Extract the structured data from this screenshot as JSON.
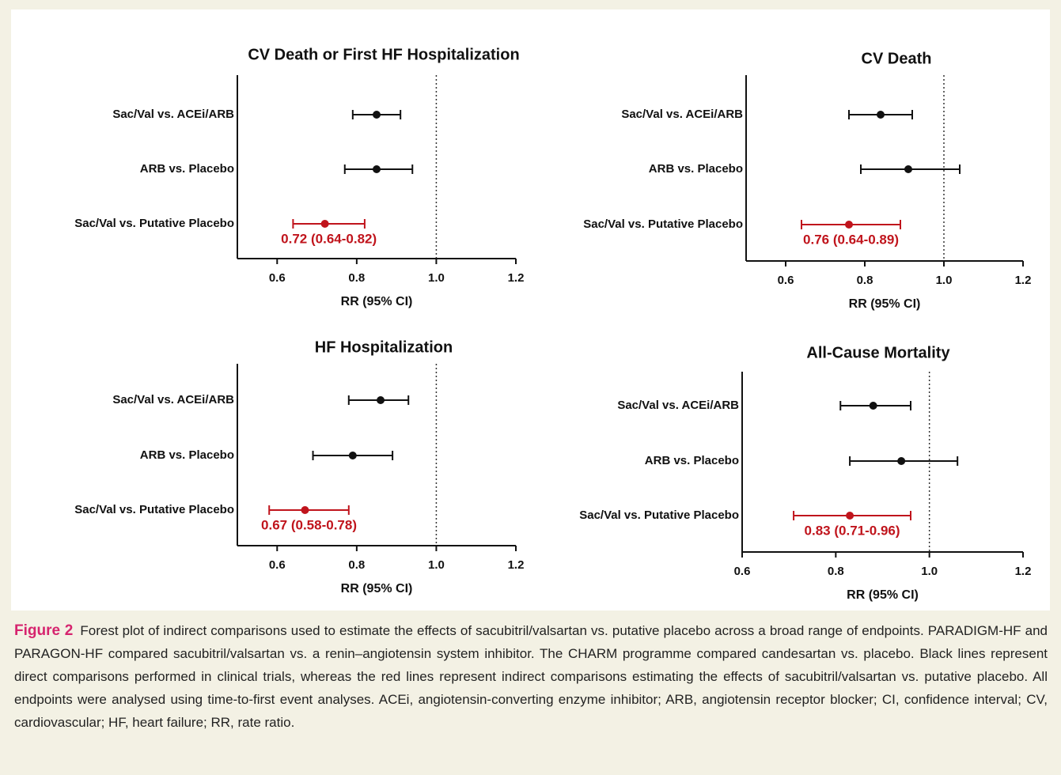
{
  "chart_data": [
    {
      "type": "forest",
      "title": "CV Death or First HF Hospitalization",
      "xlabel": "RR (95% CI)",
      "categories": [
        "Sac/Val vs. ACEi/ARB",
        "ARB vs. Placebo",
        "Sac/Val vs. Putative Placebo"
      ],
      "values": [
        0.85,
        0.85,
        0.72
      ],
      "lower": [
        0.79,
        0.77,
        0.64
      ],
      "upper": [
        0.91,
        0.94,
        0.82
      ],
      "colors": [
        "#111111",
        "#111111",
        "#c0141c"
      ],
      "value_labels": [
        null,
        null,
        "0.72 (0.64-0.82)"
      ],
      "xlim": [
        0.5,
        1.2
      ],
      "xticks": [
        0.6,
        0.8,
        {
          "value": 1,
          "label": "1.0"
        },
        1.2
      ],
      "reference_line": 1
    },
    {
      "type": "forest",
      "title": "CV Death",
      "xlabel": "RR (95% CI)",
      "categories": [
        "Sac/Val vs. ACEi/ARB",
        "ARB vs. Placebo",
        "Sac/Val vs. Putative Placebo"
      ],
      "values": [
        0.84,
        0.91,
        0.76
      ],
      "lower": [
        0.76,
        0.79,
        0.64
      ],
      "upper": [
        0.92,
        1.04,
        0.89
      ],
      "colors": [
        "#111111",
        "#111111",
        "#c0141c"
      ],
      "value_labels": [
        null,
        null,
        "0.76 (0.64-0.89)"
      ],
      "xlim": [
        0.5,
        1.2
      ],
      "xticks": [
        0.6,
        0.8,
        {
          "value": 1,
          "label": "1.0"
        },
        1.2
      ],
      "reference_line": 1
    },
    {
      "type": "forest",
      "title": "HF Hospitalization",
      "xlabel": "RR (95% CI)",
      "categories": [
        "Sac/Val vs. ACEi/ARB",
        "ARB vs. Placebo",
        "Sac/Val vs. Putative Placebo"
      ],
      "values": [
        0.86,
        0.79,
        0.67
      ],
      "lower": [
        0.78,
        0.69,
        0.58
      ],
      "upper": [
        0.93,
        0.89,
        0.78
      ],
      "colors": [
        "#111111",
        "#111111",
        "#c0141c"
      ],
      "value_labels": [
        null,
        null,
        "0.67 (0.58-0.78)"
      ],
      "xlim": [
        0.5,
        1.2
      ],
      "xticks": [
        0.6,
        0.8,
        {
          "value": 1,
          "label": "1.0"
        },
        1.2
      ],
      "reference_line": 1
    },
    {
      "type": "forest",
      "title": "All-Cause Mortality",
      "xlabel": "RR (95% CI)",
      "categories": [
        "Sac/Val vs. ACEi/ARB",
        "ARB vs. Placebo",
        "Sac/Val vs. Putative Placebo"
      ],
      "values": [
        0.88,
        0.94,
        0.83
      ],
      "lower": [
        0.81,
        0.83,
        0.71
      ],
      "upper": [
        0.96,
        1.06,
        0.96
      ],
      "colors": [
        "#111111",
        "#111111",
        "#c0141c"
      ],
      "value_labels": [
        null,
        null,
        "0.83 (0.71-0.96)"
      ],
      "xlim": [
        0.6,
        1.2
      ],
      "xticks": [
        0.6,
        0.8,
        {
          "value": 1,
          "label": "1.0"
        },
        1.2
      ],
      "reference_line": 1
    }
  ],
  "figure_caption": {
    "label": "Figure 2",
    "text": "Forest plot of indirect comparisons used to estimate the effects of sacubitril/valsartan vs. putative placebo across a broad range of endpoints. PARADIGM-HF and PARAGON-HF compared sacubitril/valsartan vs. a renin–angiotensin system inhibitor. The CHARM programme compared candesartan vs. placebo. Black lines represent direct comparisons performed in clinical trials, whereas the red lines represent indirect comparisons estimating the effects of sacubitril/valsartan vs. putative placebo. All endpoints were analysed using time-to-first event analyses. ACEi, angiotensin-converting enzyme inhibitor; ARB, angiotensin receptor blocker; CI, confidence interval; CV, cardiovascular; HF, heart failure; RR, rate ratio."
  }
}
